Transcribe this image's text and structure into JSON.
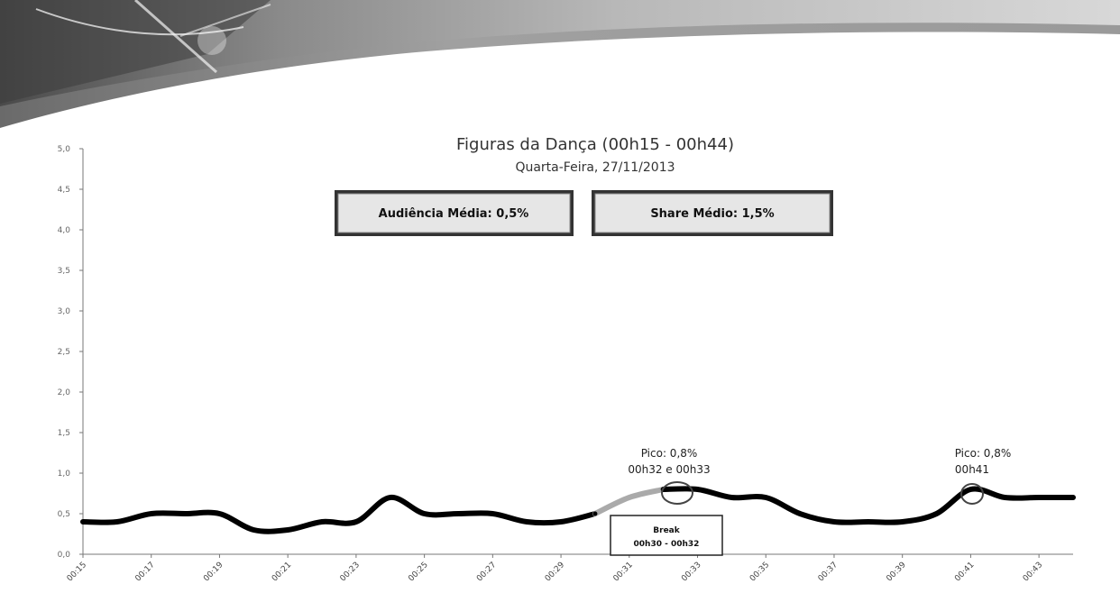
{
  "chart_data": {
    "type": "line",
    "title": "Figuras da Dança (00h15 - 00h44)",
    "subtitle": "Quarta-Feira, 27/11/2013",
    "ylim": [
      0,
      5
    ],
    "y_ticks": [
      "0,0",
      "0,5",
      "1,0",
      "1,5",
      "2,0",
      "2,5",
      "3,0",
      "3,5",
      "4,0",
      "4,5",
      "5,0"
    ],
    "x_ticks": [
      "00:15",
      "00:17",
      "00:19",
      "00:21",
      "00:23",
      "00:25",
      "00:27",
      "00:29",
      "00:31",
      "00:33",
      "00:35",
      "00:37",
      "00:39",
      "00:41",
      "00:43"
    ],
    "x_range": [
      "00:15",
      "00:44"
    ],
    "series": [
      {
        "x": [
          "00:15",
          "00:16",
          "00:17",
          "00:18",
          "00:19",
          "00:20",
          "00:21",
          "00:22",
          "00:23",
          "00:24",
          "00:25",
          "00:26",
          "00:27",
          "00:28",
          "00:29",
          "00:30",
          "00:31",
          "00:32",
          "00:33",
          "00:34",
          "00:35",
          "00:36",
          "00:37",
          "00:38",
          "00:39",
          "00:40",
          "00:41",
          "00:42",
          "00:43",
          "00:44"
        ],
        "values": [
          0.4,
          0.4,
          0.5,
          0.5,
          0.5,
          0.3,
          0.3,
          0.4,
          0.4,
          0.7,
          0.5,
          0.5,
          0.5,
          0.4,
          0.4,
          0.5,
          0.7,
          0.8,
          0.8,
          0.7,
          0.7,
          0.5,
          0.4,
          0.4,
          0.4,
          0.5,
          0.8,
          0.7,
          0.7,
          0.7
        ]
      }
    ],
    "break_segment": [
      "00:30",
      "00:32"
    ],
    "grid": false,
    "legend": "none"
  },
  "stats": {
    "audiencia": "Audiência Média: 0,5%",
    "share": "Share Médio: 1,5%"
  },
  "annotations": {
    "peak1_line1": "Pico: 0,8%",
    "peak1_line2": "00h32 e 00h33",
    "peak2_line1": "Pico: 0,8%",
    "peak2_line2": "00h41",
    "break_line1": "Break",
    "break_line2": "00h30 - 00h32"
  },
  "colors": {
    "line": "#000000",
    "break_line": "#aaaaaa",
    "box_fill": "#e6e6e6",
    "box_border": "#333333"
  }
}
